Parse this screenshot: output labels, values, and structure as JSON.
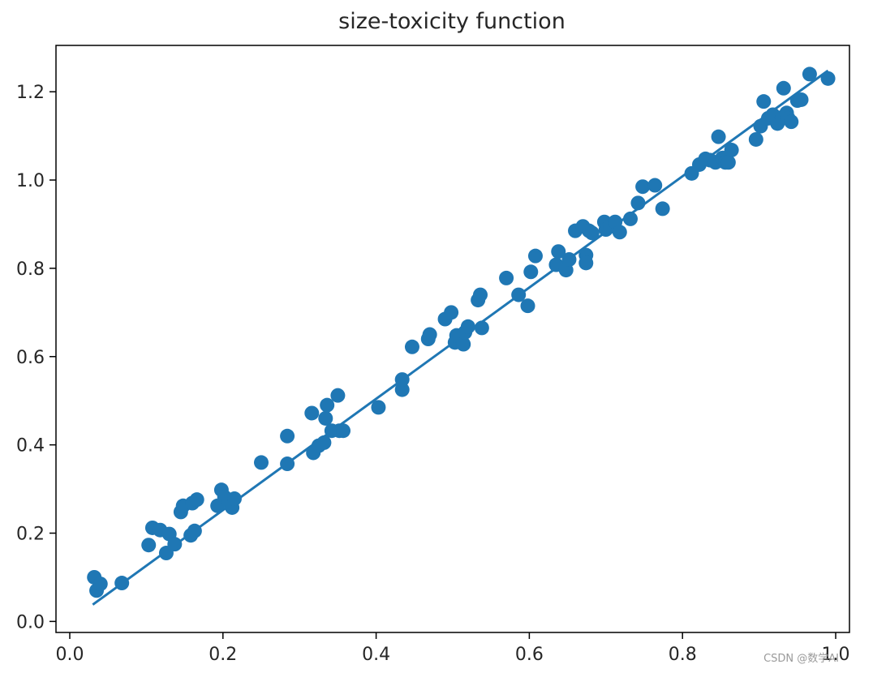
{
  "chart_data": {
    "type": "scatter",
    "title": "size-toxicity function",
    "xlabel": "",
    "ylabel": "",
    "xlim": [
      -0.018,
      1.018
    ],
    "ylim": [
      -0.025,
      1.305
    ],
    "xticks": [
      0.0,
      0.2,
      0.4,
      0.6,
      0.8,
      1.0
    ],
    "xtick_labels": [
      "0.0",
      "0.2",
      "0.4",
      "0.6",
      "0.8",
      "1.0"
    ],
    "yticks": [
      0.0,
      0.2,
      0.4,
      0.6,
      0.8,
      1.0,
      1.2
    ],
    "ytick_labels": [
      "0.0",
      "0.2",
      "0.4",
      "0.6",
      "0.8",
      "1.0",
      "1.2"
    ],
    "grid": false,
    "color": "#1f77b4",
    "series": [
      {
        "kind": "scatter",
        "points": [
          [
            0.032,
            0.1
          ],
          [
            0.035,
            0.07
          ],
          [
            0.04,
            0.085
          ],
          [
            0.068,
            0.087
          ],
          [
            0.103,
            0.173
          ],
          [
            0.108,
            0.212
          ],
          [
            0.118,
            0.207
          ],
          [
            0.126,
            0.155
          ],
          [
            0.13,
            0.198
          ],
          [
            0.137,
            0.175
          ],
          [
            0.145,
            0.248
          ],
          [
            0.148,
            0.262
          ],
          [
            0.16,
            0.268
          ],
          [
            0.158,
            0.195
          ],
          [
            0.163,
            0.205
          ],
          [
            0.166,
            0.276
          ],
          [
            0.193,
            0.262
          ],
          [
            0.198,
            0.298
          ],
          [
            0.202,
            0.282
          ],
          [
            0.208,
            0.272
          ],
          [
            0.212,
            0.258
          ],
          [
            0.215,
            0.278
          ],
          [
            0.25,
            0.36
          ],
          [
            0.284,
            0.357
          ],
          [
            0.284,
            0.42
          ],
          [
            0.316,
            0.472
          ],
          [
            0.318,
            0.382
          ],
          [
            0.325,
            0.398
          ],
          [
            0.332,
            0.405
          ],
          [
            0.334,
            0.46
          ],
          [
            0.336,
            0.49
          ],
          [
            0.342,
            0.432
          ],
          [
            0.35,
            0.512
          ],
          [
            0.352,
            0.432
          ],
          [
            0.357,
            0.432
          ],
          [
            0.403,
            0.485
          ],
          [
            0.434,
            0.525
          ],
          [
            0.434,
            0.548
          ],
          [
            0.447,
            0.622
          ],
          [
            0.468,
            0.64
          ],
          [
            0.47,
            0.65
          ],
          [
            0.49,
            0.685
          ],
          [
            0.498,
            0.7
          ],
          [
            0.503,
            0.632
          ],
          [
            0.505,
            0.648
          ],
          [
            0.514,
            0.628
          ],
          [
            0.516,
            0.655
          ],
          [
            0.52,
            0.668
          ],
          [
            0.533,
            0.728
          ],
          [
            0.536,
            0.74
          ],
          [
            0.538,
            0.665
          ],
          [
            0.57,
            0.778
          ],
          [
            0.586,
            0.74
          ],
          [
            0.598,
            0.715
          ],
          [
            0.602,
            0.792
          ],
          [
            0.608,
            0.828
          ],
          [
            0.635,
            0.808
          ],
          [
            0.638,
            0.838
          ],
          [
            0.648,
            0.796
          ],
          [
            0.652,
            0.82
          ],
          [
            0.66,
            0.885
          ],
          [
            0.67,
            0.895
          ],
          [
            0.674,
            0.83
          ],
          [
            0.674,
            0.812
          ],
          [
            0.678,
            0.885
          ],
          [
            0.682,
            0.88
          ],
          [
            0.698,
            0.905
          ],
          [
            0.7,
            0.888
          ],
          [
            0.706,
            0.895
          ],
          [
            0.712,
            0.905
          ],
          [
            0.718,
            0.882
          ],
          [
            0.732,
            0.912
          ],
          [
            0.742,
            0.948
          ],
          [
            0.748,
            0.985
          ],
          [
            0.764,
            0.988
          ],
          [
            0.774,
            0.935
          ],
          [
            0.812,
            1.015
          ],
          [
            0.822,
            1.035
          ],
          [
            0.83,
            1.048
          ],
          [
            0.836,
            1.045
          ],
          [
            0.843,
            1.04
          ],
          [
            0.847,
            1.098
          ],
          [
            0.852,
            1.05
          ],
          [
            0.856,
            1.04
          ],
          [
            0.86,
            1.04
          ],
          [
            0.864,
            1.068
          ],
          [
            0.896,
            1.092
          ],
          [
            0.902,
            1.122
          ],
          [
            0.906,
            1.178
          ],
          [
            0.912,
            1.14
          ],
          [
            0.918,
            1.148
          ],
          [
            0.924,
            1.128
          ],
          [
            0.93,
            1.142
          ],
          [
            0.932,
            1.208
          ],
          [
            0.936,
            1.152
          ],
          [
            0.938,
            1.14
          ],
          [
            0.942,
            1.132
          ],
          [
            0.95,
            1.18
          ],
          [
            0.955,
            1.182
          ],
          [
            0.966,
            1.24
          ],
          [
            0.99,
            1.23
          ]
        ]
      },
      {
        "kind": "line",
        "points": [
          [
            0.03,
            0.038
          ],
          [
            0.99,
            1.248
          ]
        ]
      }
    ]
  },
  "watermark": "CSDN @数学AI"
}
